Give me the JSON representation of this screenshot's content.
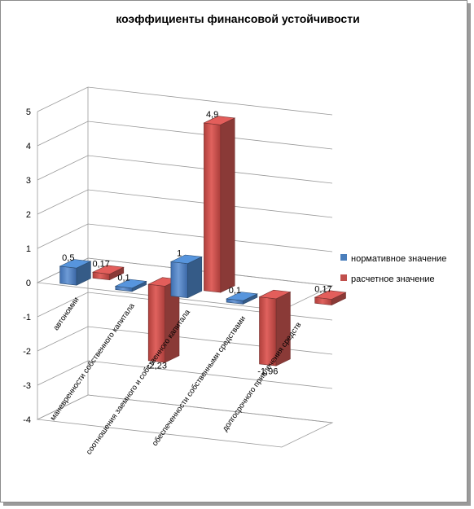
{
  "chart_data": {
    "type": "bar",
    "title": "коэффициенты финансовой устойчивости",
    "categories": [
      "автономии",
      "маневренности собственного капитала",
      "соотношения заемного и собственного капитала",
      "обеспеченности собственными средствами",
      "долгосрочного привлечения средств"
    ],
    "series": [
      {
        "name": "нормативное значение",
        "color": "#4a7ebb",
        "values": [
          0.5,
          0.1,
          1,
          0.1,
          null
        ],
        "labels": [
          "0,5",
          "0,1",
          "1",
          "0,1",
          ""
        ]
      },
      {
        "name": "расчетное значение",
        "color": "#c0504d",
        "values": [
          0.17,
          -2.23,
          4.9,
          -1.96,
          0.17
        ],
        "labels": [
          "0,17",
          "-2,23",
          "4,9",
          "-1,96",
          "0,17"
        ]
      }
    ],
    "ylim": [
      -4,
      5
    ],
    "yticks": [
      "-4",
      "-3",
      "-2",
      "-1",
      "0",
      "1",
      "2",
      "3",
      "4",
      "5"
    ],
    "grid": true,
    "legend_position": "right",
    "three_d": true
  }
}
